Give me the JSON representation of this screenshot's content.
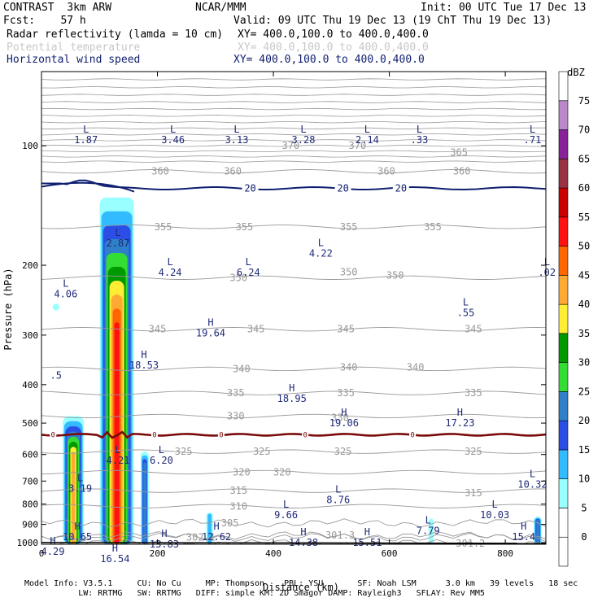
{
  "header": {
    "l1": "CONTRAST  3km ARW",
    "l1c": "NCAR/MMM",
    "l1r": "Init: 00 UTC Tue 17 Dec 13",
    "l2": "Fcst:    57 h",
    "l2r": "Valid: 09 UTC Thu 19 Dec 13 (19 ChT Thu 19 Dec 13)",
    "f1": "Radar reflectivity (lamda = 10 cm)",
    "f1r": "XY= 400.0,100.0 to 400.0,400.0",
    "f2": "Potential temperature",
    "f2r": "XY= 400.0,100.0 to 400.0,400.0",
    "f3": "Horizontal wind speed",
    "f3r": "XY= 400.0,100.0 to 400.0,400.0"
  },
  "footer": {
    "r1": "Model Info: V3.5.1     CU: No Cu     MP: Thompson    PBL: YSU       SF: Noah LSM      3.0 km   39 levels   18 sec",
    "r2": "           LW: RRTMG   SW: RRTMG   DIFF: simple KM: 2D Smagor DAMP: Rayleigh3   SFLAY: Rev MM5"
  },
  "colors": {
    "wind": "#0f1f70",
    "theta": "#999999",
    "zero_line": "#7a0a0a",
    "label": "#1f2a78"
  },
  "chart_data": {
    "type": "heatmap",
    "xlabel": "Distance (km)",
    "ylabel": "Pressure (hPa)",
    "xlim": [
      0,
      870
    ],
    "ylim": [
      1010,
      65
    ],
    "yscale": "log",
    "x_ticks": [
      0,
      200,
      400,
      600,
      800
    ],
    "y_ticks": [
      100,
      200,
      300,
      400,
      500,
      600,
      700,
      800,
      900,
      1000
    ],
    "colorbar": {
      "title": "dBZ",
      "levels": [
        0,
        5,
        10,
        15,
        20,
        25,
        30,
        35,
        40,
        45,
        50,
        55,
        60,
        65,
        70,
        75
      ],
      "colors": [
        "#ffffff",
        "#ffffff",
        "#99ffff",
        "#33bbff",
        "#2b4fe6",
        "#2f7fc9",
        "#33dd33",
        "#009900",
        "#ffee33",
        "#ffaa33",
        "#ff6600",
        "#ff1111",
        "#cc0000",
        "#993344",
        "#882299",
        "#bb88cc",
        "#ffffff"
      ]
    },
    "reflectivity_cells": [
      {
        "x": 55,
        "top": 480,
        "bottom": 1010,
        "halfwidth": 13,
        "dbz": 42
      },
      {
        "x": 130,
        "top": 135,
        "bottom": 1010,
        "halfwidth": 21,
        "dbz": 50
      },
      {
        "x": 178,
        "top": 590,
        "bottom": 1010,
        "halfwidth": 5,
        "dbz": 22
      },
      {
        "x": 290,
        "top": 840,
        "bottom": 1010,
        "halfwidth": 4,
        "dbz": 10
      },
      {
        "x": 672,
        "top": 870,
        "bottom": 1010,
        "halfwidth": 3,
        "dbz": 8
      },
      {
        "x": 856,
        "top": 860,
        "bottom": 1010,
        "halfwidth": 5,
        "dbz": 22
      },
      {
        "x": 25,
        "top": 250,
        "bottom": 260,
        "halfwidth": 4,
        "dbz": 8
      }
    ],
    "theta_contours": [
      {
        "value": "360",
        "p": 116
      },
      {
        "value": "355",
        "p": 160
      },
      {
        "value": "350",
        "p": 215
      },
      {
        "value": "345",
        "p": 290
      },
      {
        "value": "340",
        "p": 365
      },
      {
        "value": "335",
        "p": 420
      },
      {
        "value": "330",
        "p": 480
      },
      {
        "value": "325",
        "p": 590
      },
      {
        "value": "320",
        "p": 665
      },
      {
        "value": "315",
        "p": 740
      },
      {
        "value": "310",
        "p": 810
      },
      {
        "value": "305",
        "p": 893
      },
      {
        "value": "302.1",
        "p": 970
      },
      {
        "value": "301.3",
        "p": 960
      },
      {
        "value": "301.2",
        "p": 1005
      }
    ],
    "theta_labels": [
      {
        "text": "360",
        "x": 205,
        "p": 116
      },
      {
        "text": "360",
        "x": 330,
        "p": 116
      },
      {
        "text": "360",
        "x": 595,
        "p": 116
      },
      {
        "text": "370",
        "x": 545,
        "p": 100
      },
      {
        "text": "370",
        "x": 430,
        "p": 100
      },
      {
        "text": "365",
        "x": 720,
        "p": 104
      },
      {
        "text": "360",
        "x": 725,
        "p": 116
      },
      {
        "text": "355",
        "x": 210,
        "p": 160
      },
      {
        "text": "355",
        "x": 350,
        "p": 160
      },
      {
        "text": "355",
        "x": 530,
        "p": 160
      },
      {
        "text": "355",
        "x": 675,
        "p": 160
      },
      {
        "text": "350",
        "x": 340,
        "p": 215
      },
      {
        "text": "350",
        "x": 530,
        "p": 208
      },
      {
        "text": "350",
        "x": 610,
        "p": 212
      },
      {
        "text": "345",
        "x": 200,
        "p": 290
      },
      {
        "text": "345",
        "x": 370,
        "p": 290
      },
      {
        "text": "345",
        "x": 525,
        "p": 290
      },
      {
        "text": "345",
        "x": 745,
        "p": 290
      },
      {
        "text": "340",
        "x": 345,
        "p": 365
      },
      {
        "text": "340",
        "x": 530,
        "p": 362
      },
      {
        "text": "340",
        "x": 645,
        "p": 362
      },
      {
        "text": "335",
        "x": 335,
        "p": 420
      },
      {
        "text": "335",
        "x": 525,
        "p": 420
      },
      {
        "text": "335",
        "x": 745,
        "p": 420
      },
      {
        "text": "330",
        "x": 335,
        "p": 480
      },
      {
        "text": "330",
        "x": 515,
        "p": 485
      },
      {
        "text": "325",
        "x": 245,
        "p": 590
      },
      {
        "text": "325",
        "x": 380,
        "p": 590
      },
      {
        "text": "325",
        "x": 520,
        "p": 590
      },
      {
        "text": "325",
        "x": 745,
        "p": 590
      },
      {
        "text": "320",
        "x": 345,
        "p": 665
      },
      {
        "text": "320",
        "x": 415,
        "p": 665
      },
      {
        "text": "315",
        "x": 340,
        "p": 740
      },
      {
        "text": "315",
        "x": 745,
        "p": 750
      },
      {
        "text": "310",
        "x": 340,
        "p": 810
      },
      {
        "text": "305",
        "x": 325,
        "p": 893
      },
      {
        "text": "302.1",
        "x": 275,
        "p": 970
      },
      {
        "text": "301.3",
        "x": 515,
        "p": 960
      },
      {
        "text": "301.2",
        "x": 740,
        "p": 1005
      }
    ],
    "wind_contour": {
      "value": "20",
      "label_x": [
        360,
        520,
        620
      ],
      "p": 128
    },
    "zero_line_p": 535,
    "zero_labels_x": [
      20,
      195,
      310,
      455,
      640
    ],
    "zero_label": "0",
    "extrema": [
      {
        "kind": "L",
        "value": "1.87",
        "x": 60,
        "p": 88
      },
      {
        "kind": "L",
        "value": "3.46",
        "x": 210,
        "p": 88
      },
      {
        "kind": "L",
        "value": "3.13",
        "x": 320,
        "p": 88
      },
      {
        "kind": "L",
        "value": "3.28",
        "x": 435,
        "p": 88
      },
      {
        "kind": "L",
        "value": "2.14",
        "x": 545,
        "p": 88
      },
      {
        "kind": "L",
        "value": ".33",
        "x": 635,
        "p": 88
      },
      {
        "kind": "L",
        "value": ".71",
        "x": 830,
        "p": 88
      },
      {
        "kind": "L",
        "value": "2.87",
        "x": 115,
        "p": 160
      },
      {
        "kind": "L",
        "value": "4.24",
        "x": 205,
        "p": 190
      },
      {
        "kind": "L",
        "value": "6.24",
        "x": 340,
        "p": 190
      },
      {
        "kind": "L",
        "value": "4.22",
        "x": 465,
        "p": 170
      },
      {
        "kind": "L",
        "value": "4.06",
        "x": 25,
        "p": 215
      },
      {
        "kind": "L",
        "value": ".02",
        "x": 855,
        "p": 190
      },
      {
        "kind": "L",
        "value": ".55",
        "x": 715,
        "p": 240
      },
      {
        "kind": "H",
        "value": "19.64",
        "x": 275,
        "p": 270
      },
      {
        "kind": "H",
        "value": "18.53",
        "x": 160,
        "p": 325
      },
      {
        "kind": "H",
        "value": "18.95",
        "x": 415,
        "p": 395
      },
      {
        "kind": "H",
        "value": "19.06",
        "x": 505,
        "p": 455
      },
      {
        "kind": "H",
        "value": "17.23",
        "x": 705,
        "p": 455
      },
      {
        "kind": "L",
        "value": "4.21",
        "x": 115,
        "p": 565
      },
      {
        "kind": "L",
        "value": "6.20",
        "x": 190,
        "p": 565
      },
      {
        "kind": "L",
        "value": "3.19",
        "x": 50,
        "p": 665
      },
      {
        "kind": "L",
        "value": "10.32",
        "x": 830,
        "p": 650
      },
      {
        "kind": "L",
        "value": "8.76",
        "x": 495,
        "p": 710
      },
      {
        "kind": "L",
        "value": "9.66",
        "x": 405,
        "p": 775
      },
      {
        "kind": "L",
        "value": "10.03",
        "x": 765,
        "p": 775
      },
      {
        "kind": "L",
        "value": "7.79",
        "x": 650,
        "p": 850
      },
      {
        "kind": "H",
        "value": "10.65",
        "x": 45,
        "p": 880
      },
      {
        "kind": "H",
        "value": "12.62",
        "x": 285,
        "p": 880
      },
      {
        "kind": "H",
        "value": "15.4",
        "x": 815,
        "p": 880
      },
      {
        "kind": "H",
        "value": "13.83",
        "x": 195,
        "p": 920
      },
      {
        "kind": "H",
        "value": "14.38",
        "x": 435,
        "p": 910
      },
      {
        "kind": "H",
        "value": "15.51",
        "x": 545,
        "p": 910
      },
      {
        "kind": "H",
        "value": "4.29",
        "x": 0,
        "p": 960
      },
      {
        "kind": "H",
        "value": "16.54",
        "x": 110,
        "p": 1000
      },
      {
        "kind": "",
        "value": ".5",
        "x": 8,
        "p": 345
      }
    ]
  }
}
